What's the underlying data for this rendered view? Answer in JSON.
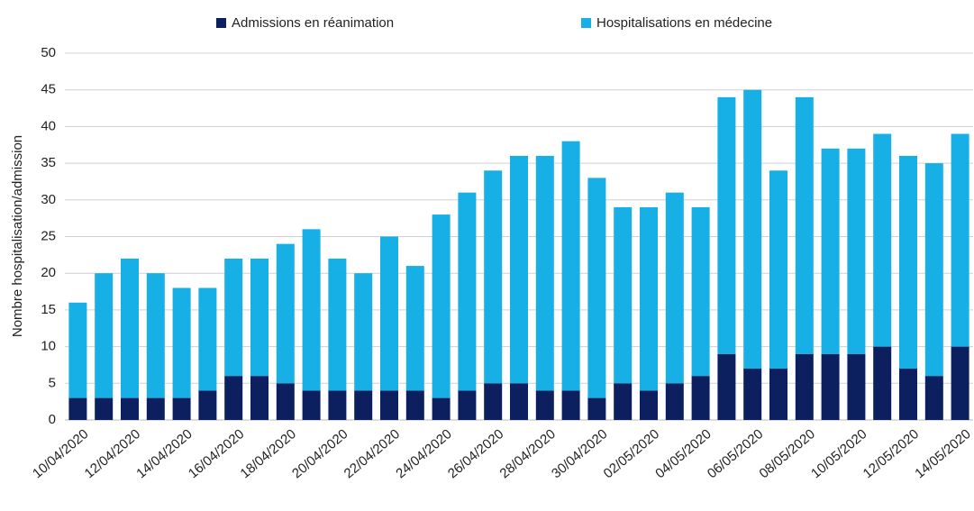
{
  "chart_data": {
    "type": "stacked-bar",
    "y_label": "Nombre hospitalisation/admission",
    "categories": [
      "10/04/2020",
      null,
      "12/04/2020",
      null,
      "14/04/2020",
      null,
      "16/04/2020",
      null,
      "18/04/2020",
      null,
      "20/04/2020",
      null,
      "22/04/2020",
      null,
      "24/04/2020",
      null,
      "26/04/2020",
      null,
      "28/04/2020",
      null,
      "30/04/2020",
      null,
      "02/05/2020",
      null,
      "04/05/2020",
      null,
      "06/05/2020",
      null,
      "08/05/2020",
      null,
      "10/05/2020",
      null,
      "12/05/2020",
      null,
      "14/05/2020"
    ],
    "series": [
      {
        "name": "Admissions en  réanimation",
        "color": "#0c1f5e",
        "values": [
          3,
          3,
          3,
          3,
          3,
          4,
          6,
          6,
          5,
          4,
          4,
          4,
          4,
          4,
          3,
          4,
          5,
          5,
          4,
          4,
          3,
          5,
          4,
          5,
          6,
          9,
          7,
          7,
          9,
          9,
          9,
          10,
          7,
          6,
          10
        ]
      },
      {
        "name": "Hospitalisations en médecine",
        "color": "#17b0e6",
        "values": [
          13,
          17,
          19,
          17,
          15,
          14,
          16,
          16,
          19,
          22,
          18,
          16,
          21,
          17,
          25,
          27,
          29,
          31,
          32,
          34,
          30,
          24,
          25,
          26,
          23,
          35,
          38,
          27,
          35,
          28,
          28,
          29,
          29,
          29,
          29
        ]
      }
    ],
    "ylim": [
      0,
      50
    ],
    "yticks": [
      0,
      5,
      10,
      15,
      20,
      25,
      30,
      35,
      40,
      45,
      50
    ],
    "grid": true
  }
}
